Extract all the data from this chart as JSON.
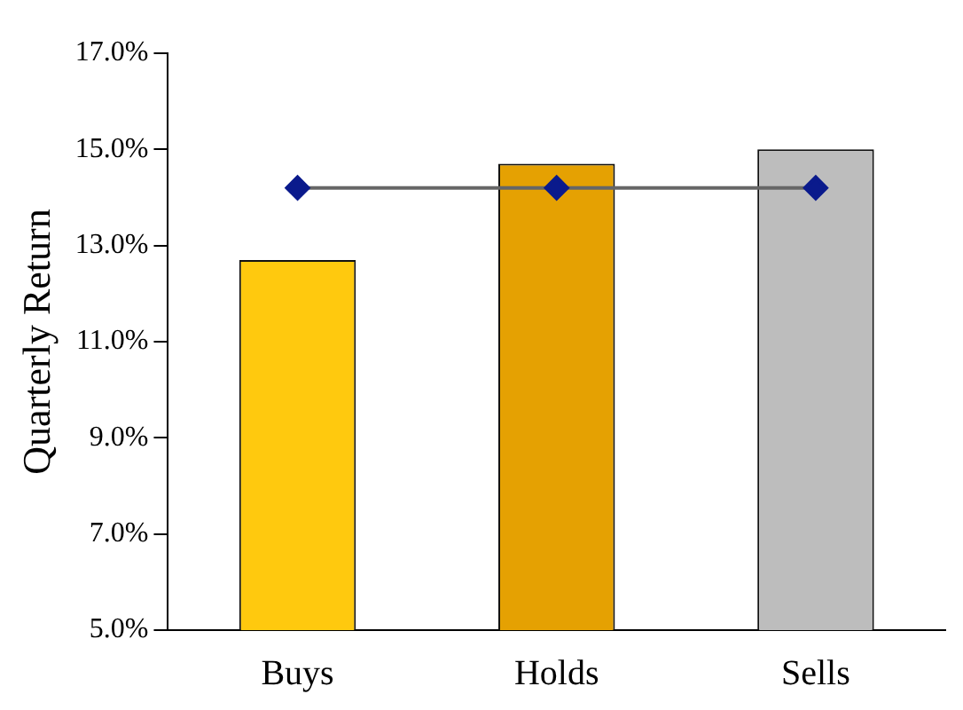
{
  "chart_data": {
    "type": "bar",
    "ylabel": "Quarterly Return",
    "categories": [
      "Buys",
      "Holds",
      "Sells"
    ],
    "series": [
      {
        "colors": [
          "#ffc90e",
          "#e5a102",
          "#bdbdbd"
        ],
        "values": [
          12.7,
          14.7,
          15.0
        ]
      },
      {
        "type": "line",
        "color": "#0a1a8c",
        "values": [
          14.2,
          14.2,
          14.2
        ],
        "marker": "diamond"
      }
    ],
    "ylim": [
      5,
      17
    ],
    "yticks": [
      {
        "value": 5,
        "label": "5.0%"
      },
      {
        "value": 7,
        "label": "7.0%"
      },
      {
        "value": 9,
        "label": "9.0%"
      },
      {
        "value": 11,
        "label": "11.0%"
      },
      {
        "value": 13,
        "label": "13.0%"
      },
      {
        "value": 15,
        "label": "15.0%"
      },
      {
        "value": 17,
        "label": "17.0%"
      }
    ],
    "grid": false,
    "legend": false
  }
}
